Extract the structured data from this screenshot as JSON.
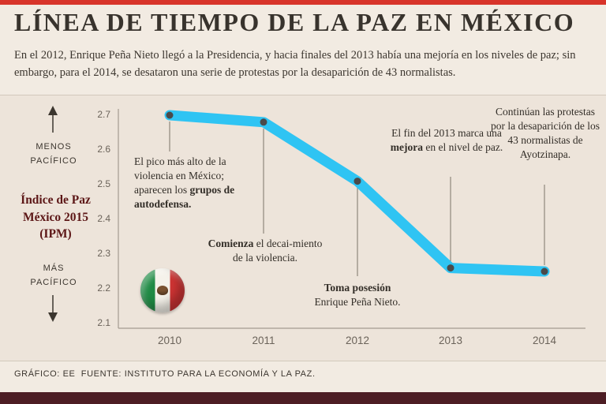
{
  "page": {
    "title": "LÍNEA DE TIEMPO DE LA PAZ EN MÉXICO",
    "subtitle": "En el 2012, Enrique Peña Nieto llegó a la Presidencia, y hacia finales del 2013 había una mejoría en los niveles de paz; sin embargo, para el 2014, se desataron una serie de protestas por la desaparición de 43 normalistas.",
    "footer": "GRÁFICO: EE  FUENTE: INSTITUTO PARA LA ECONOMÍA Y LA PAZ.",
    "colors": {
      "top_accent_bar": "#d8342a",
      "bottom_bar": "#4d1d24",
      "background": "#f2ebe2",
      "chart_background": "#ede4da",
      "line": "#2fc4f3",
      "index_label": "#5c1616"
    }
  },
  "labels": {
    "less_peaceful": "MENOS PACÍFICO",
    "more_peaceful": "MÁS PACÍFICO",
    "index_title": "Índice de Paz México 2015 (IPM)"
  },
  "annotations": {
    "a2010": {
      "pre": "El pico más alto de la violencia en México; aparecen los ",
      "bold": "grupos de autodefensa."
    },
    "a2011": {
      "bold": "Comienza",
      "post": " el decai-miento de la violencia."
    },
    "a2012": {
      "bold": "Toma posesión",
      "post": "Enrique Peña Nieto."
    },
    "a2013": {
      "pre": "El fin del 2013 marca una ",
      "bold": "mejora",
      "post": " en el nivel de paz."
    },
    "a2014": {
      "text": "Continúan las protestas por la desaparición de los 43 normalistas de Ayotzinapa."
    }
  },
  "chart_data": {
    "type": "line",
    "x": [
      "2010",
      "2011",
      "2012",
      "2013",
      "2014"
    ],
    "values": [
      2.7,
      2.68,
      2.51,
      2.26,
      2.25
    ],
    "series_name": "Índice de Paz México 2015 (IPM)",
    "title": "LÍNEA DE TIEMPO DE LA PAZ EN MÉXICO",
    "xlabel": "",
    "ylabel": "Índice de Paz México 2015 (IPM)",
    "ylim": [
      2.1,
      2.7
    ],
    "yticks": [
      "2.7",
      "2.6",
      "2.5",
      "2.4",
      "2.3",
      "2.2",
      "2.1"
    ],
    "grid": false,
    "legend_position": "none",
    "line_color": "#2fc4f3",
    "point_color": "#4a4a4a",
    "annotations": [
      {
        "x": "2010",
        "text": "El pico más alto de la violencia en México; aparecen los grupos de autodefensa."
      },
      {
        "x": "2011",
        "text": "Comienza el decaimiento de la violencia."
      },
      {
        "x": "2012",
        "text": "Toma posesión Enrique Peña Nieto."
      },
      {
        "x": "2013",
        "text": "El fin del 2013 marca una mejora en el nivel de paz."
      },
      {
        "x": "2014",
        "text": "Continúan las protestas por la desaparición de los 43 normalistas de Ayotzinapa."
      }
    ]
  }
}
